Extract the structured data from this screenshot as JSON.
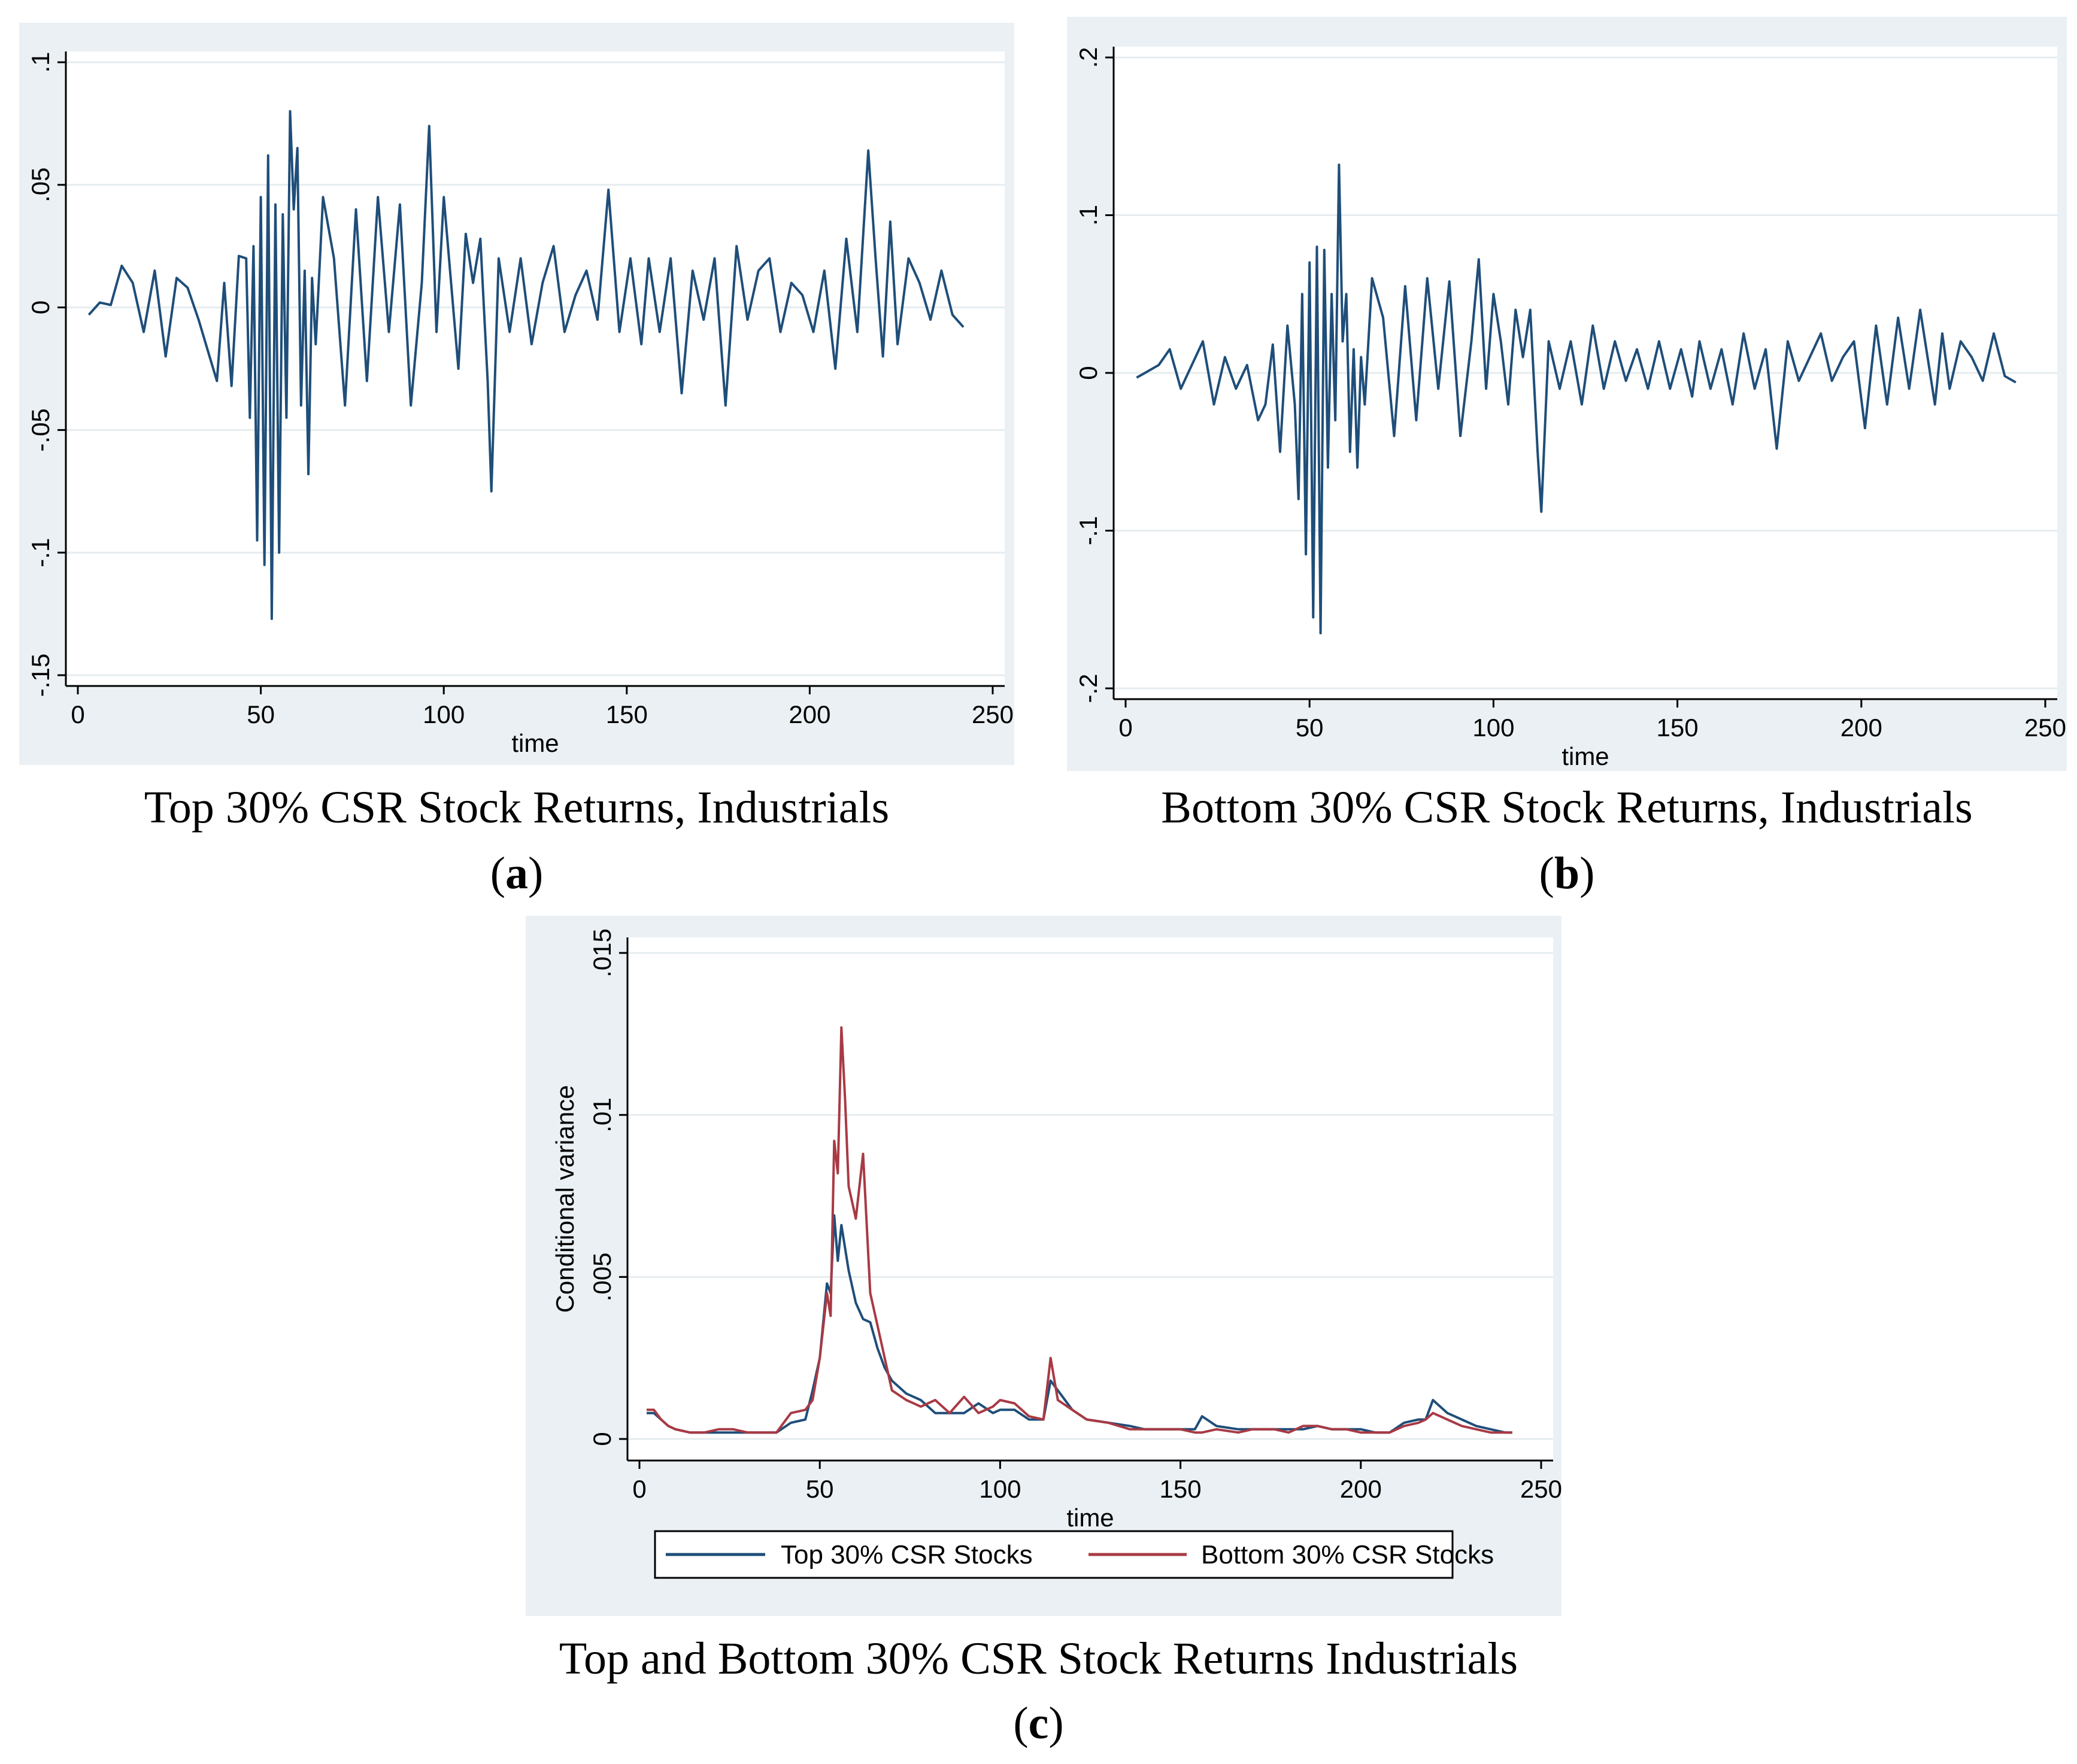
{
  "colors": {
    "panel_bg": "#eaf0f3",
    "plot_bg": "#ffffff",
    "grid": "#e6ecef",
    "axis": "#000000",
    "top_series": "#1f4e79",
    "bottom_series": "#a83a44"
  },
  "captions": [
    {
      "text": "Top 30% CSR Stock Returns, Industrials",
      "sub_open": "(",
      "sub_letter": "a",
      "sub_close": ")"
    },
    {
      "text": "Bottom 30% CSR Stock Returns, Industrials",
      "sub_open": "(",
      "sub_letter": "b",
      "sub_close": ")"
    },
    {
      "text": "Top and Bottom 30% CSR Stock Returns Industrials",
      "sub_open": "(",
      "sub_letter": "c",
      "sub_close": ")"
    }
  ],
  "chart_data": [
    {
      "type": "line",
      "xlabel": "time",
      "ylabel": "",
      "xlim": [
        0,
        250
      ],
      "ylim": [
        -0.15,
        0.1
      ],
      "xticks": [
        0,
        50,
        100,
        150,
        200,
        250
      ],
      "xtick_labels": [
        "0",
        "50",
        "100",
        "150",
        "200",
        "250"
      ],
      "yticks": [
        -0.15,
        -0.1,
        -0.05,
        0,
        0.05,
        0.1
      ],
      "ytick_labels": [
        "-.15",
        "-.1",
        "-.05",
        "0",
        ".05",
        ".1"
      ],
      "grid": true,
      "series": [
        {
          "name": "Top 30% CSR Stock Returns",
          "x": [
            3,
            6,
            9,
            12,
            15,
            18,
            21,
            24,
            27,
            30,
            33,
            36,
            38,
            40,
            42,
            44,
            46,
            47,
            48,
            49,
            50,
            51,
            52,
            53,
            54,
            55,
            56,
            57,
            58,
            59,
            60,
            61,
            62,
            63,
            64,
            65,
            67,
            70,
            73,
            76,
            79,
            82,
            85,
            88,
            91,
            94,
            96,
            98,
            100,
            102,
            104,
            106,
            108,
            110,
            112,
            113,
            115,
            118,
            121,
            124,
            127,
            130,
            133,
            136,
            139,
            142,
            145,
            148,
            151,
            154,
            156,
            159,
            162,
            165,
            168,
            171,
            174,
            177,
            180,
            183,
            186,
            189,
            192,
            195,
            198,
            201,
            204,
            207,
            210,
            213,
            216,
            218,
            220,
            222,
            224,
            227,
            230,
            233,
            236,
            239,
            242
          ],
          "values": [
            -0.003,
            0.002,
            0.001,
            0.017,
            0.01,
            -0.01,
            0.015,
            -0.02,
            0.012,
            0.008,
            -0.005,
            -0.02,
            -0.03,
            0.01,
            -0.032,
            0.021,
            0.02,
            -0.045,
            0.025,
            -0.095,
            0.045,
            -0.105,
            0.062,
            -0.127,
            0.042,
            -0.1,
            0.038,
            -0.045,
            0.08,
            0.04,
            0.065,
            -0.04,
            0.015,
            -0.068,
            0.012,
            -0.015,
            0.045,
            0.02,
            -0.04,
            0.04,
            -0.03,
            0.045,
            -0.01,
            0.042,
            -0.04,
            0.01,
            0.074,
            -0.01,
            0.045,
            0.01,
            -0.025,
            0.03,
            0.01,
            0.028,
            -0.03,
            -0.075,
            0.02,
            -0.01,
            0.02,
            -0.015,
            0.01,
            0.025,
            -0.01,
            0.005,
            0.015,
            -0.005,
            0.048,
            -0.01,
            0.02,
            -0.015,
            0.02,
            -0.01,
            0.02,
            -0.035,
            0.015,
            -0.005,
            0.02,
            -0.04,
            0.025,
            -0.005,
            0.015,
            0.02,
            -0.01,
            0.01,
            0.005,
            -0.01,
            0.015,
            -0.025,
            0.028,
            -0.01,
            0.064,
            0.02,
            -0.02,
            0.035,
            -0.015,
            0.02,
            0.01,
            -0.005,
            0.015,
            -0.003,
            -0.008
          ]
        }
      ]
    },
    {
      "type": "line",
      "xlabel": "time",
      "ylabel": "",
      "xlim": [
        0,
        250
      ],
      "ylim": [
        -0.2,
        0.2
      ],
      "xticks": [
        0,
        50,
        100,
        150,
        200,
        250
      ],
      "xtick_labels": [
        "0",
        "50",
        "100",
        "150",
        "200",
        "250"
      ],
      "yticks": [
        -0.2,
        -0.1,
        0,
        0.1,
        0.2
      ],
      "ytick_labels": [
        "-.2",
        "-.1",
        "0",
        ".1",
        ".2"
      ],
      "grid": true,
      "series": [
        {
          "name": "Bottom 30% CSR Stock Returns",
          "x": [
            3,
            6,
            9,
            12,
            15,
            18,
            21,
            24,
            27,
            30,
            33,
            36,
            38,
            40,
            42,
            44,
            46,
            47,
            48,
            49,
            50,
            51,
            52,
            53,
            54,
            55,
            56,
            57,
            58,
            59,
            60,
            61,
            62,
            63,
            64,
            65,
            67,
            70,
            73,
            76,
            79,
            82,
            85,
            88,
            91,
            94,
            96,
            98,
            100,
            102,
            104,
            106,
            108,
            110,
            112,
            113,
            115,
            118,
            121,
            124,
            127,
            130,
            133,
            136,
            139,
            142,
            145,
            148,
            151,
            154,
            156,
            159,
            162,
            165,
            168,
            171,
            174,
            177,
            180,
            183,
            186,
            189,
            192,
            195,
            198,
            201,
            204,
            207,
            210,
            213,
            216,
            218,
            220,
            222,
            224,
            227,
            230,
            233,
            236,
            239,
            242
          ],
          "values": [
            -0.003,
            0.001,
            0.005,
            0.015,
            -0.01,
            0.005,
            0.02,
            -0.02,
            0.01,
            -0.01,
            0.005,
            -0.03,
            -0.02,
            0.018,
            -0.05,
            0.03,
            -0.02,
            -0.08,
            0.05,
            -0.115,
            0.07,
            -0.155,
            0.08,
            -0.165,
            0.078,
            -0.06,
            0.05,
            -0.03,
            0.132,
            0.02,
            0.05,
            -0.05,
            0.015,
            -0.06,
            0.01,
            -0.02,
            0.06,
            0.035,
            -0.04,
            0.055,
            -0.03,
            0.06,
            -0.01,
            0.058,
            -0.04,
            0.02,
            0.072,
            -0.01,
            0.05,
            0.02,
            -0.02,
            0.04,
            0.01,
            0.04,
            -0.05,
            -0.088,
            0.02,
            -0.01,
            0.02,
            -0.02,
            0.03,
            -0.01,
            0.02,
            -0.005,
            0.015,
            -0.01,
            0.02,
            -0.01,
            0.015,
            -0.015,
            0.02,
            -0.01,
            0.015,
            -0.02,
            0.025,
            -0.01,
            0.015,
            -0.048,
            0.02,
            -0.005,
            0.01,
            0.025,
            -0.005,
            0.01,
            0.02,
            -0.035,
            0.03,
            -0.02,
            0.035,
            -0.01,
            0.04,
            0.01,
            -0.02,
            0.025,
            -0.01,
            0.02,
            0.01,
            -0.005,
            0.025,
            -0.002,
            -0.006
          ]
        }
      ]
    },
    {
      "type": "line",
      "xlabel": "time",
      "ylabel": "Conditional variance",
      "xlim": [
        0,
        250
      ],
      "ylim": [
        0,
        0.015
      ],
      "xticks": [
        0,
        50,
        100,
        150,
        200,
        250
      ],
      "xtick_labels": [
        "0",
        "50",
        "100",
        "150",
        "200",
        "250"
      ],
      "yticks": [
        0,
        0.005,
        0.01,
        0.015
      ],
      "ytick_labels": [
        "0",
        ".005",
        ".01",
        ".015"
      ],
      "grid": true,
      "legend": {
        "placement": "bottom",
        "entries": [
          "Top 30% CSR Stocks",
          "Bottom 30% CSR Stocks"
        ]
      },
      "series": [
        {
          "name": "Top 30% CSR Stocks",
          "x": [
            2,
            4,
            6,
            8,
            10,
            14,
            18,
            22,
            26,
            30,
            34,
            38,
            42,
            46,
            48,
            50,
            52,
            53,
            54,
            55,
            56,
            58,
            60,
            62,
            64,
            66,
            68,
            70,
            74,
            78,
            82,
            86,
            90,
            94,
            98,
            100,
            104,
            108,
            112,
            114,
            116,
            120,
            124,
            130,
            136,
            140,
            146,
            150,
            154,
            156,
            160,
            166,
            170,
            176,
            180,
            184,
            188,
            192,
            196,
            200,
            204,
            208,
            212,
            216,
            218,
            220,
            224,
            228,
            232,
            236,
            240,
            242
          ],
          "values": [
            0.0008,
            0.0008,
            0.0006,
            0.0004,
            0.0003,
            0.0002,
            0.0002,
            0.0002,
            0.0002,
            0.0002,
            0.0002,
            0.0002,
            0.0005,
            0.0006,
            0.0015,
            0.0025,
            0.0048,
            0.0045,
            0.0069,
            0.0055,
            0.0066,
            0.0052,
            0.0042,
            0.0037,
            0.0036,
            0.0028,
            0.0022,
            0.0018,
            0.0014,
            0.0012,
            0.0008,
            0.0008,
            0.0008,
            0.0011,
            0.0008,
            0.0009,
            0.0009,
            0.0006,
            0.0006,
            0.0018,
            0.0015,
            0.0009,
            0.0006,
            0.0005,
            0.0004,
            0.0003,
            0.0003,
            0.0003,
            0.0003,
            0.0007,
            0.0004,
            0.0003,
            0.0003,
            0.0003,
            0.0003,
            0.0003,
            0.0004,
            0.0003,
            0.0003,
            0.0003,
            0.0002,
            0.0002,
            0.0005,
            0.0006,
            0.0006,
            0.0012,
            0.0008,
            0.0006,
            0.0004,
            0.0003,
            0.0002,
            0.0002
          ]
        },
        {
          "name": "Bottom 30% CSR Stocks",
          "x": [
            2,
            4,
            6,
            8,
            10,
            14,
            18,
            22,
            26,
            30,
            34,
            38,
            42,
            46,
            48,
            50,
            52,
            53,
            54,
            55,
            56,
            57,
            58,
            60,
            62,
            64,
            66,
            68,
            70,
            74,
            78,
            82,
            86,
            90,
            94,
            98,
            100,
            104,
            108,
            112,
            114,
            116,
            120,
            124,
            130,
            136,
            140,
            146,
            150,
            154,
            156,
            160,
            166,
            170,
            176,
            180,
            184,
            188,
            192,
            196,
            200,
            204,
            208,
            212,
            216,
            218,
            220,
            224,
            228,
            232,
            236,
            240,
            242
          ],
          "values": [
            0.0009,
            0.0009,
            0.0006,
            0.0004,
            0.0003,
            0.0002,
            0.0002,
            0.0003,
            0.0003,
            0.0002,
            0.0002,
            0.0002,
            0.0008,
            0.0009,
            0.0012,
            0.0025,
            0.0045,
            0.0038,
            0.0092,
            0.0082,
            0.0127,
            0.0105,
            0.0078,
            0.0068,
            0.0088,
            0.0045,
            0.0035,
            0.0025,
            0.0015,
            0.0012,
            0.001,
            0.0012,
            0.0008,
            0.0013,
            0.0008,
            0.001,
            0.0012,
            0.0011,
            0.0007,
            0.0006,
            0.0025,
            0.0012,
            0.0009,
            0.0006,
            0.0005,
            0.0003,
            0.0003,
            0.0003,
            0.0003,
            0.0002,
            0.0002,
            0.0003,
            0.0002,
            0.0003,
            0.0003,
            0.0002,
            0.0004,
            0.0004,
            0.0003,
            0.0003,
            0.0002,
            0.0002,
            0.0002,
            0.0004,
            0.0005,
            0.0006,
            0.0008,
            0.0006,
            0.0004,
            0.0003,
            0.0002,
            0.0002,
            0.0002
          ]
        }
      ]
    }
  ]
}
